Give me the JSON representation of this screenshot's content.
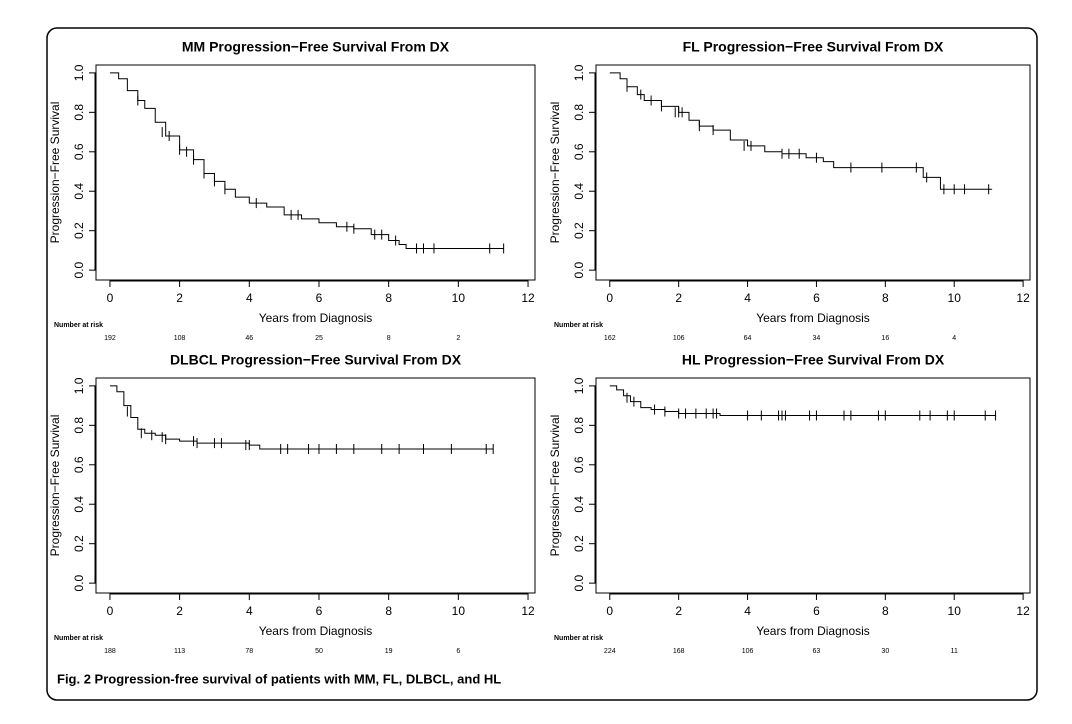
{
  "chart_data": [
    {
      "type": "line",
      "title": "MM Progression−Free Survival From DX",
      "xlabel": "Years from Diagnosis",
      "ylabel": "Progression−Free Survival",
      "x": [
        0,
        0.25,
        0.5,
        0.8,
        1,
        1.3,
        1.6,
        2,
        2.4,
        2.7,
        3,
        3.3,
        3.6,
        4,
        4.5,
        5,
        5.5,
        6,
        6.5,
        7,
        7.5,
        8,
        8.3,
        8.5,
        11.3
      ],
      "values": [
        1,
        0.97,
        0.91,
        0.86,
        0.82,
        0.75,
        0.68,
        0.61,
        0.56,
        0.49,
        0.45,
        0.41,
        0.37,
        0.34,
        0.32,
        0.28,
        0.26,
        0.24,
        0.22,
        0.21,
        0.18,
        0.15,
        0.13,
        0.11,
        0.11
      ],
      "censored": {
        "x": [
          0.8,
          1.5,
          1.7,
          2.0,
          2.2,
          2.4,
          2.7,
          3.0,
          3.3,
          4.2,
          5.2,
          5.4,
          6.8,
          7.0,
          7.6,
          7.8,
          8.2,
          8.8,
          9.0,
          9.3,
          10.9,
          11.3
        ],
        "values": [
          0.86,
          0.7,
          0.68,
          0.61,
          0.6,
          0.56,
          0.49,
          0.45,
          0.41,
          0.34,
          0.28,
          0.28,
          0.22,
          0.21,
          0.18,
          0.18,
          0.15,
          0.11,
          0.11,
          0.11,
          0.11,
          0.11
        ]
      },
      "risk_label": "Number at risk",
      "risk_counts": [
        192,
        108,
        46,
        25,
        8,
        2
      ],
      "xlim": [
        -0.4,
        12.2
      ],
      "ylim": [
        -0.05,
        1.04
      ],
      "xticks": [
        0,
        2,
        4,
        6,
        8,
        10,
        12
      ],
      "yticks": [
        {
          "value": 0,
          "label": "0.0"
        },
        0.2,
        0.4,
        0.6,
        0.8,
        {
          "value": 1,
          "label": "1.0"
        }
      ],
      "color": "#000000"
    },
    {
      "type": "line",
      "title": "FL Progression−Free Survival From DX",
      "xlabel": "Years from Diagnosis",
      "ylabel": "Progression−Free Survival",
      "x": [
        0,
        0.3,
        0.5,
        0.8,
        1,
        1.5,
        2,
        2.3,
        2.6,
        3,
        3.5,
        4,
        4.5,
        5,
        5.7,
        6.2,
        6.5,
        7,
        9,
        9.1,
        9.5,
        9.6,
        11.1
      ],
      "values": [
        1,
        0.97,
        0.93,
        0.89,
        0.86,
        0.83,
        0.8,
        0.76,
        0.73,
        0.71,
        0.66,
        0.63,
        0.6,
        0.59,
        0.57,
        0.55,
        0.52,
        0.52,
        0.52,
        0.47,
        0.47,
        0.41,
        0.41
      ],
      "censored": {
        "x": [
          0.5,
          0.9,
          1.2,
          1.5,
          1.9,
          2.0,
          2.1,
          2.6,
          3.0,
          3.9,
          4.1,
          5.0,
          5.2,
          5.5,
          6.0,
          7.0,
          7.9,
          8.9,
          9.2,
          9.7,
          10.0,
          10.3,
          11.0
        ],
        "values": [
          0.93,
          0.89,
          0.86,
          0.83,
          0.8,
          0.8,
          0.8,
          0.73,
          0.71,
          0.63,
          0.63,
          0.59,
          0.59,
          0.59,
          0.57,
          0.52,
          0.52,
          0.52,
          0.47,
          0.41,
          0.41,
          0.41,
          0.41
        ]
      },
      "risk_label": "Number at risk",
      "risk_counts": [
        162,
        106,
        64,
        34,
        16,
        4
      ],
      "xlim": [
        -0.4,
        12.2
      ],
      "ylim": [
        -0.05,
        1.04
      ],
      "xticks": [
        0,
        2,
        4,
        6,
        8,
        10,
        12
      ],
      "yticks": [
        {
          "value": 0,
          "label": "0.0"
        },
        0.2,
        0.4,
        0.6,
        0.8,
        {
          "value": 1,
          "label": "1.0"
        }
      ],
      "color": "#000000"
    },
    {
      "type": "line",
      "title": "DLBCL Progression−Free Survival From DX",
      "xlabel": "Years from Diagnosis",
      "ylabel": "Progression−Free Survival",
      "x": [
        0,
        0.2,
        0.4,
        0.6,
        0.8,
        1,
        1.3,
        1.6,
        2,
        2.5,
        3,
        4,
        4.3,
        11
      ],
      "values": [
        1,
        0.97,
        0.9,
        0.84,
        0.78,
        0.76,
        0.75,
        0.73,
        0.72,
        0.71,
        0.71,
        0.7,
        0.68,
        0.68
      ],
      "censored": {
        "x": [
          0.5,
          0.9,
          1.2,
          1.5,
          1.6,
          2.4,
          2.5,
          3.0,
          3.2,
          3.9,
          4.0,
          4.9,
          5.1,
          5.7,
          6.0,
          6.5,
          7.0,
          7.8,
          8.3,
          9.0,
          9.8,
          10.8,
          11.0
        ],
        "values": [
          0.87,
          0.76,
          0.75,
          0.74,
          0.73,
          0.72,
          0.71,
          0.71,
          0.71,
          0.7,
          0.7,
          0.68,
          0.68,
          0.68,
          0.68,
          0.68,
          0.68,
          0.68,
          0.68,
          0.68,
          0.68,
          0.68,
          0.68
        ]
      },
      "risk_label": "Number at risk",
      "risk_counts": [
        188,
        113,
        78,
        50,
        19,
        6
      ],
      "xlim": [
        -0.4,
        12.2
      ],
      "ylim": [
        -0.05,
        1.04
      ],
      "xticks": [
        0,
        2,
        4,
        6,
        8,
        10,
        12
      ],
      "yticks": [
        {
          "value": 0,
          "label": "0.0"
        },
        0.2,
        0.4,
        0.6,
        0.8,
        {
          "value": 1,
          "label": "1.0"
        }
      ],
      "color": "#000000"
    },
    {
      "type": "line",
      "title": "HL Progression−Free Survival From DX",
      "xlabel": "Years from Diagnosis",
      "ylabel": "Progression−Free Survival",
      "x": [
        0,
        0.2,
        0.4,
        0.6,
        0.9,
        1.2,
        1.6,
        2,
        2.5,
        3,
        3.2,
        4,
        11.2
      ],
      "values": [
        1,
        0.98,
        0.95,
        0.92,
        0.89,
        0.88,
        0.87,
        0.86,
        0.86,
        0.86,
        0.85,
        0.85,
        0.85
      ],
      "censored": {
        "x": [
          0.5,
          0.7,
          1.3,
          1.6,
          2.0,
          2.2,
          2.5,
          2.8,
          3.0,
          3.1,
          4.0,
          4.4,
          4.9,
          5.0,
          5.1,
          5.8,
          6.0,
          6.8,
          7.0,
          7.8,
          8.0,
          9.0,
          9.3,
          9.8,
          10.0,
          10.9,
          11.2
        ],
        "values": [
          0.94,
          0.92,
          0.88,
          0.87,
          0.86,
          0.86,
          0.86,
          0.86,
          0.86,
          0.86,
          0.85,
          0.85,
          0.85,
          0.85,
          0.85,
          0.85,
          0.85,
          0.85,
          0.85,
          0.85,
          0.85,
          0.85,
          0.85,
          0.85,
          0.85,
          0.85,
          0.85
        ]
      },
      "risk_label": "Number at risk",
      "risk_counts": [
        224,
        168,
        106,
        63,
        30,
        11
      ],
      "xlim": [
        -0.4,
        12.2
      ],
      "ylim": [
        -0.05,
        1.04
      ],
      "xticks": [
        0,
        2,
        4,
        6,
        8,
        10,
        12
      ],
      "yticks": [
        {
          "value": 0,
          "label": "0.0"
        },
        0.2,
        0.4,
        0.6,
        0.8,
        {
          "value": 1,
          "label": "1.0"
        }
      ],
      "color": "#000000"
    }
  ],
  "caption": "Fig. 2 Progression-free survival of patients with MM, FL, DLBCL, and HL"
}
